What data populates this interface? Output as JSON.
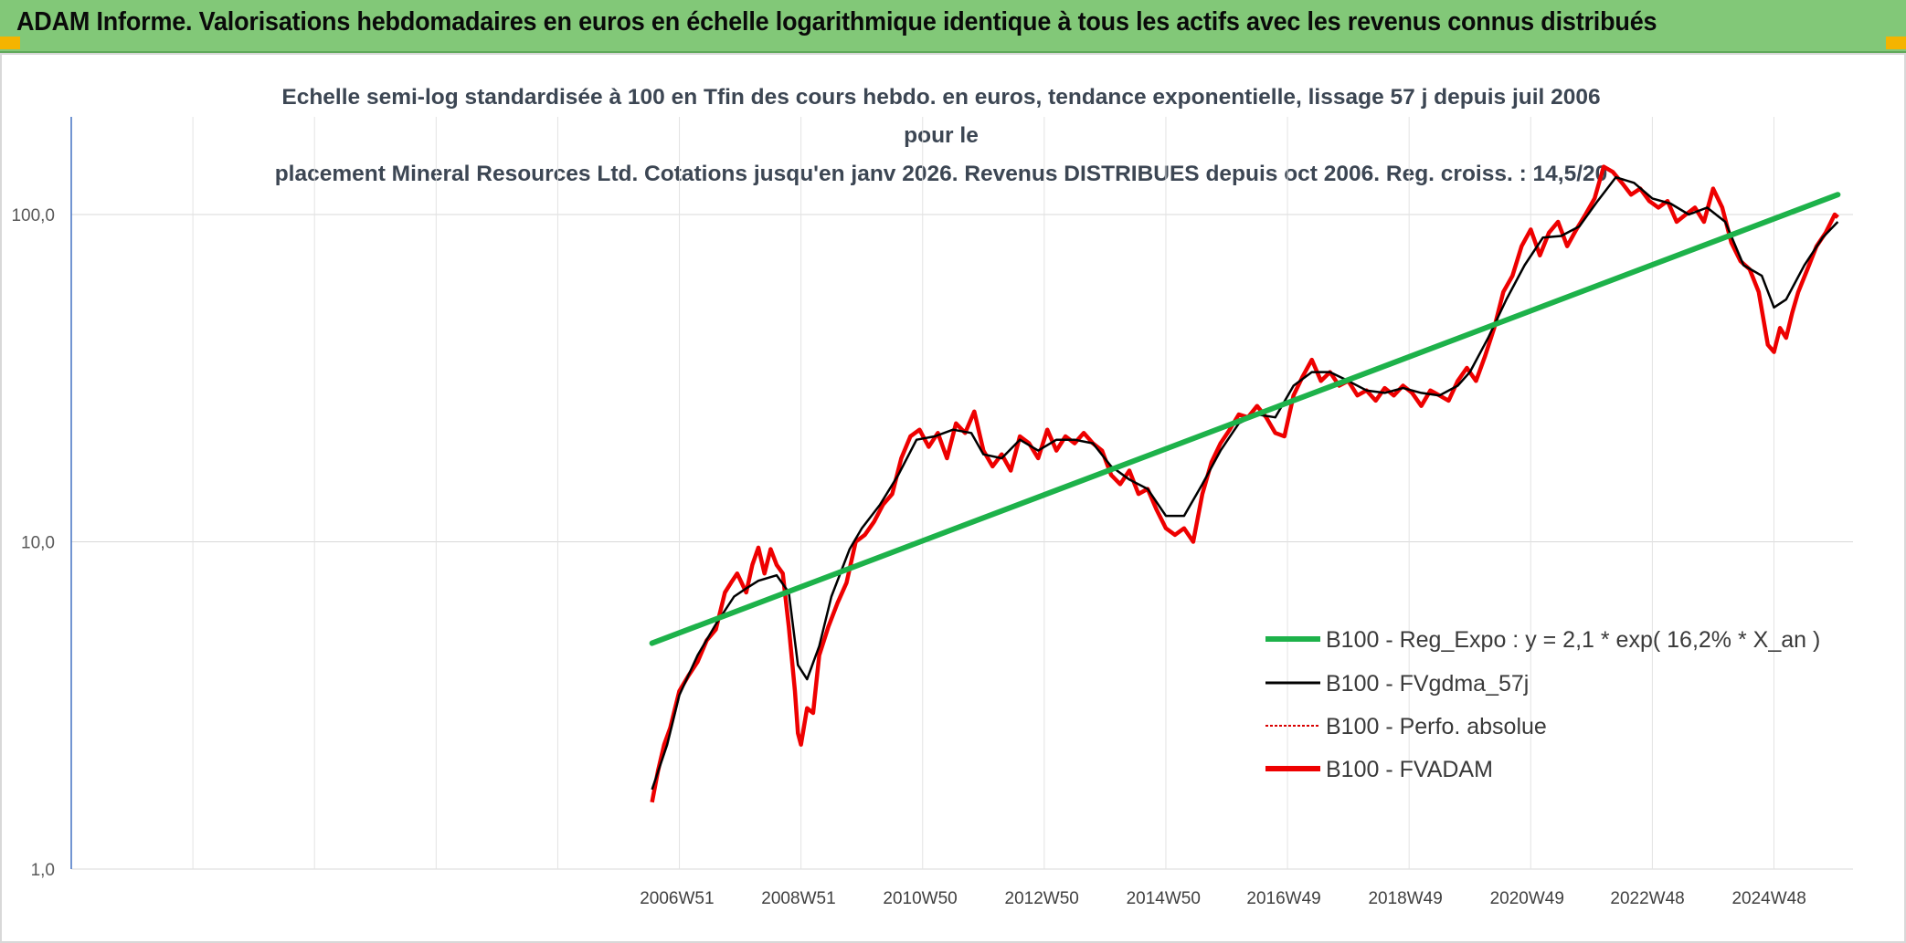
{
  "banner": {
    "title": "ADAM Informe. Valorisations hebdomadaires en euros en échelle logarithmique identique à tous les actifs avec les revenus connus distribués"
  },
  "colors": {
    "banner_bg": "#82c878",
    "corner_accent": "#f5b400",
    "reg_expo": "#1db24a",
    "fvgdma": "#000000",
    "perfo": "#d90000",
    "fvadam": "#ee0000"
  },
  "chart_data": {
    "type": "line",
    "title_line1": "Echelle semi-log standardisée à 100 en Tfin des cours hebdo. en euros, tendance exponentielle, lissage 57 j depuis juil 2006 pour le",
    "title_line2": "placement Mineral Resources Ltd. Cotations jusqu'en janv 2026. Revenus DISTRIBUES depuis oct 2006. Reg. croiss. : 14,5/20",
    "y_scale": "log",
    "ylim": [
      1,
      200
    ],
    "y_ticks": [
      "1,0",
      "10,0",
      "100,0"
    ],
    "x_ticks": [
      "2006W51",
      "2008W51",
      "2010W50",
      "2012W50",
      "2014W50",
      "2016W49",
      "2018W49",
      "2020W49",
      "2022W48",
      "2024W48"
    ],
    "x_tick_years": [
      2006.96,
      2008.96,
      2010.96,
      2012.96,
      2014.96,
      2016.94,
      2018.94,
      2020.94,
      2022.92,
      2024.92
    ],
    "xlim": [
      1997.0,
      2026.3
    ],
    "grid": true,
    "legend_position": "right",
    "series": [
      {
        "name": "B100 - Reg_Expo : y = 2,1 * exp( 16,2% *  X_an )",
        "style": "thick",
        "x": [
          2006.55,
          2026.05
        ],
        "y": [
          4.9,
          115
        ]
      },
      {
        "name": "B100 - FVgdma_57j",
        "style": "thin",
        "x": [
          2006.55,
          2006.8,
          2007.0,
          2007.3,
          2007.6,
          2007.9,
          2008.1,
          2008.3,
          2008.6,
          2008.8,
          2008.95,
          2009.1,
          2009.3,
          2009.5,
          2009.8,
          2010.0,
          2010.3,
          2010.6,
          2010.9,
          2011.2,
          2011.5,
          2011.8,
          2012.0,
          2012.3,
          2012.6,
          2012.9,
          2013.2,
          2013.5,
          2013.8,
          2014.1,
          2014.4,
          2014.7,
          2015.0,
          2015.3,
          2015.6,
          2015.9,
          2016.2,
          2016.5,
          2016.8,
          2017.1,
          2017.4,
          2017.7,
          2018.0,
          2018.3,
          2018.6,
          2018.9,
          2019.2,
          2019.5,
          2019.8,
          2020.0,
          2020.3,
          2020.6,
          2020.9,
          2021.2,
          2021.5,
          2021.8,
          2022.1,
          2022.4,
          2022.7,
          2023.0,
          2023.3,
          2023.6,
          2023.9,
          2024.2,
          2024.5,
          2024.8,
          2025.0,
          2025.2,
          2025.5,
          2025.8,
          2026.05
        ],
        "y": [
          1.75,
          2.4,
          3.4,
          4.5,
          5.6,
          6.8,
          7.2,
          7.6,
          7.9,
          7.0,
          4.2,
          3.8,
          4.8,
          6.8,
          9.5,
          11.0,
          13.0,
          16.0,
          20.5,
          21.0,
          22.0,
          21.5,
          18.5,
          18.0,
          20.5,
          19.0,
          20.5,
          20.5,
          20.0,
          17.0,
          15.5,
          14.5,
          12.0,
          12.0,
          15.0,
          19.0,
          23.0,
          24.5,
          24.0,
          30.0,
          33.0,
          33.0,
          31.0,
          29.0,
          28.5,
          29.5,
          28.5,
          28.0,
          30.0,
          33.0,
          42.0,
          55.0,
          70.0,
          85.0,
          86.0,
          92.0,
          110.0,
          130.0,
          125.0,
          112.0,
          108.0,
          100.0,
          105.0,
          95.0,
          70.0,
          65.0,
          52.0,
          55.0,
          70.0,
          85.0,
          95.0
        ]
      },
      {
        "name": "B100 - Perfo. absolue",
        "style": "dotted",
        "x": [],
        "y": []
      },
      {
        "name": "B100 - FVADAM",
        "style": "thick-noisy",
        "x": [
          2006.55,
          2006.65,
          2006.75,
          2006.85,
          2007.0,
          2007.15,
          2007.3,
          2007.45,
          2007.6,
          2007.75,
          2007.85,
          2007.95,
          2008.1,
          2008.2,
          2008.3,
          2008.4,
          2008.5,
          2008.6,
          2008.7,
          2008.8,
          2008.9,
          2008.95,
          2009.0,
          2009.1,
          2009.2,
          2009.3,
          2009.45,
          2009.6,
          2009.75,
          2009.9,
          2010.05,
          2010.2,
          2010.35,
          2010.5,
          2010.65,
          2010.8,
          2010.95,
          2011.1,
          2011.25,
          2011.4,
          2011.55,
          2011.7,
          2011.85,
          2012.0,
          2012.15,
          2012.3,
          2012.45,
          2012.6,
          2012.75,
          2012.9,
          2013.05,
          2013.2,
          2013.35,
          2013.5,
          2013.65,
          2013.8,
          2013.95,
          2014.1,
          2014.25,
          2014.4,
          2014.55,
          2014.7,
          2014.85,
          2015.0,
          2015.15,
          2015.3,
          2015.45,
          2015.6,
          2015.75,
          2015.9,
          2016.05,
          2016.2,
          2016.35,
          2016.5,
          2016.65,
          2016.8,
          2016.95,
          2017.1,
          2017.25,
          2017.4,
          2017.55,
          2017.7,
          2017.85,
          2018.0,
          2018.15,
          2018.3,
          2018.45,
          2018.6,
          2018.75,
          2018.9,
          2019.05,
          2019.2,
          2019.35,
          2019.5,
          2019.65,
          2019.8,
          2019.95,
          2020.1,
          2020.25,
          2020.4,
          2020.55,
          2020.7,
          2020.85,
          2021.0,
          2021.15,
          2021.3,
          2021.45,
          2021.6,
          2021.75,
          2021.9,
          2022.05,
          2022.2,
          2022.35,
          2022.5,
          2022.65,
          2022.8,
          2022.95,
          2023.1,
          2023.25,
          2023.4,
          2023.55,
          2023.7,
          2023.85,
          2024.0,
          2024.15,
          2024.3,
          2024.45,
          2024.6,
          2024.75,
          2024.9,
          2025.0,
          2025.1,
          2025.2,
          2025.3,
          2025.4,
          2025.55,
          2025.7,
          2025.85,
          2026.0,
          2026.05
        ],
        "y": [
          1.6,
          2.0,
          2.4,
          2.7,
          3.5,
          3.9,
          4.3,
          5.0,
          5.4,
          7.0,
          7.5,
          8.0,
          7.0,
          8.5,
          9.6,
          8.0,
          9.5,
          8.5,
          8.0,
          5.5,
          3.5,
          2.6,
          2.4,
          3.1,
          3.0,
          4.5,
          5.5,
          6.5,
          7.5,
          10.0,
          10.5,
          11.5,
          13.0,
          14.0,
          18.0,
          21.0,
          22.0,
          19.5,
          21.5,
          18.0,
          23.0,
          21.5,
          25.0,
          19.0,
          17.0,
          18.5,
          16.5,
          21.0,
          20.0,
          18.0,
          22.0,
          19.0,
          21.0,
          20.0,
          21.5,
          20.0,
          19.0,
          16.0,
          15.0,
          16.5,
          14.0,
          14.5,
          12.5,
          11.0,
          10.5,
          11.0,
          10.0,
          14.0,
          17.5,
          20.0,
          22.0,
          24.5,
          24.0,
          26.0,
          24.0,
          21.5,
          21.0,
          28.0,
          32.0,
          36.0,
          31.0,
          33.0,
          30.0,
          31.0,
          28.0,
          29.0,
          27.0,
          29.5,
          28.0,
          30.0,
          28.5,
          26.0,
          29.0,
          28.0,
          27.0,
          31.0,
          34.0,
          31.0,
          37.0,
          45.0,
          58.0,
          65.0,
          80.0,
          90.0,
          75.0,
          88.0,
          95.0,
          80.0,
          90.0,
          100.0,
          112.0,
          140.0,
          135.0,
          125.0,
          115.0,
          120.0,
          110.0,
          105.0,
          110.0,
          95.0,
          100.0,
          105.0,
          95.0,
          120.0,
          105.0,
          82.0,
          72.0,
          68.0,
          58.0,
          40.0,
          38.0,
          45.0,
          42.0,
          50.0,
          58.0,
          68.0,
          80.0,
          88.0,
          100.0,
          98.0
        ]
      }
    ]
  }
}
